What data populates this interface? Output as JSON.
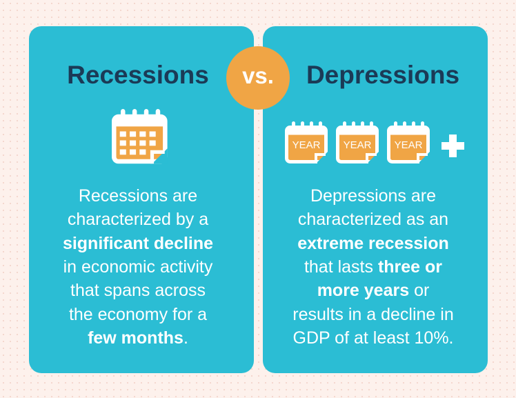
{
  "vs": "vs.",
  "left": {
    "title": "Recessions",
    "body": [
      [
        {
          "text": "Recessions are",
          "bold": false
        }
      ],
      [
        {
          "text": "characterized by a",
          "bold": false
        }
      ],
      [
        {
          "text": "significant decline",
          "bold": true
        }
      ],
      [
        {
          "text": "in economic activity",
          "bold": false
        }
      ],
      [
        {
          "text": "that spans across",
          "bold": false
        }
      ],
      [
        {
          "text": "the economy for a",
          "bold": false
        }
      ],
      [
        {
          "text": "few months",
          "bold": true
        },
        {
          "text": ".",
          "bold": false
        }
      ]
    ]
  },
  "right": {
    "title": "Depressions",
    "icon_labels": [
      "YEAR",
      "YEAR",
      "YEAR"
    ],
    "body": [
      [
        {
          "text": "Depressions are",
          "bold": false
        }
      ],
      [
        {
          "text": "characterized as an",
          "bold": false
        }
      ],
      [
        {
          "text": "extreme recession",
          "bold": true
        }
      ],
      [
        {
          "text": "that lasts ",
          "bold": false
        },
        {
          "text": "three or",
          "bold": true
        }
      ],
      [
        {
          "text": "more years",
          "bold": true
        },
        {
          "text": " or",
          "bold": false
        }
      ],
      [
        {
          "text": "results in a decline in",
          "bold": false
        }
      ],
      [
        {
          "text": "GDP of at least 10%.",
          "bold": false
        }
      ]
    ]
  }
}
